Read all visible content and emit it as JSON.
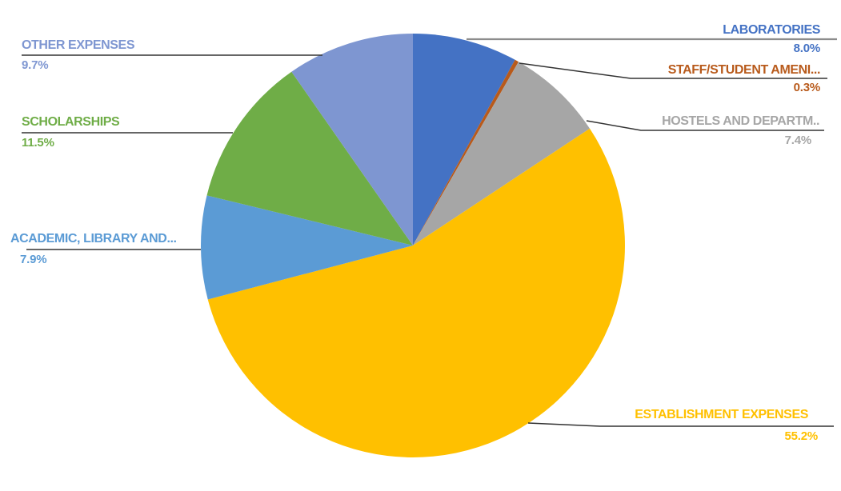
{
  "page": {
    "background": "#FFFFFF",
    "title": ""
  },
  "chart_data": {
    "type": "pie",
    "title": "",
    "legend": "none",
    "start_angle_deg": 0,
    "direction": "clockwise",
    "label_style": "outside-callout-with-underline-and-percent",
    "slices": [
      {
        "label": "LABORATORIES",
        "value": 8.0,
        "pct_label": "8.0%",
        "color": "#4472C4"
      },
      {
        "label": "STAFF/STUDENT AMENI...",
        "value": 0.3,
        "pct_label": "0.3%",
        "color": "#B85A1B"
      },
      {
        "label": "HOSTELS AND DEPARTM..",
        "value": 7.4,
        "pct_label": "7.4%",
        "color": "#A6A6A6"
      },
      {
        "label": "ESTABLISHMENT EXPENSES",
        "value": 55.2,
        "pct_label": "55.2%",
        "color": "#FFC000"
      },
      {
        "label": "ACADEMIC, LIBRARY AND...",
        "value": 7.9,
        "pct_label": "7.9%",
        "color": "#5B9BD5"
      },
      {
        "label": "SCHOLARSHIPS",
        "value": 11.5,
        "pct_label": "11.5%",
        "color": "#6FAD47"
      },
      {
        "label": "OTHER EXPENSES",
        "value": 9.7,
        "pct_label": "9.7%",
        "color": "#7E96D1"
      }
    ],
    "leader_lines": {
      "default_color": "#333333",
      "laboratories_color": "#8C8C8C"
    }
  }
}
